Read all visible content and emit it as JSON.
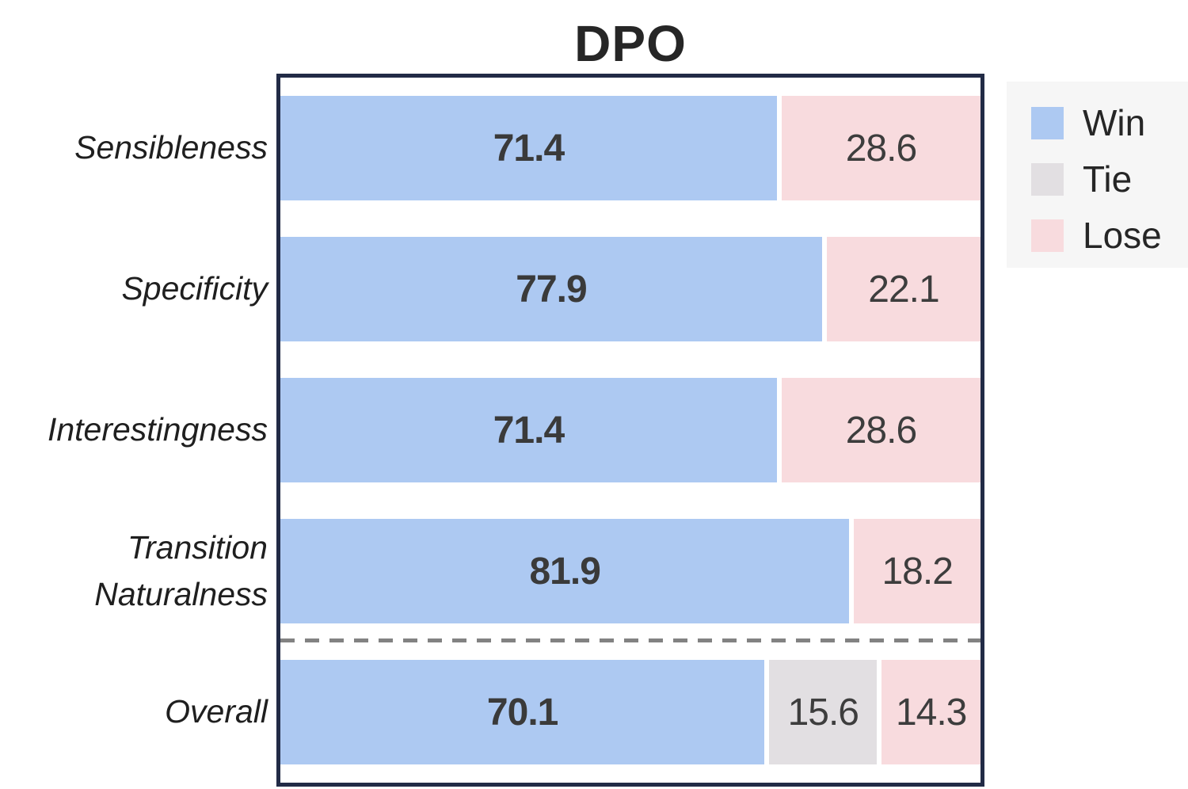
{
  "chart_data": {
    "type": "bar",
    "orientation": "horizontal-stacked",
    "title": "DPO",
    "categories": [
      "Sensibleness",
      "Specificity",
      "Interestingness",
      "Transition Naturalness",
      "Overall"
    ],
    "series": [
      {
        "name": "Win",
        "values": [
          71.4,
          77.9,
          71.4,
          81.9,
          70.1
        ]
      },
      {
        "name": "Tie",
        "values": [
          0,
          0,
          0,
          0,
          15.6
        ]
      },
      {
        "name": "Lose",
        "values": [
          28.6,
          22.1,
          28.6,
          18.2,
          14.3
        ]
      }
    ],
    "value_labels": {
      "win": [
        "71.4",
        "77.9",
        "71.4",
        "81.9",
        "70.1"
      ],
      "tie": [
        "",
        "",
        "",
        "",
        "15.6"
      ],
      "lose": [
        "28.6",
        "22.1",
        "28.6",
        "18.2",
        "14.3"
      ]
    },
    "legend": {
      "position": "outside-top-right",
      "entries": [
        {
          "label": "Win",
          "color": "#adc9f2"
        },
        {
          "label": "Tie",
          "color": "#e2dfe2"
        },
        {
          "label": "Lose",
          "color": "#f8dbde"
        }
      ]
    },
    "separator": {
      "after_category_index": 3,
      "style": "dashed",
      "color": "#828282"
    },
    "colors": {
      "win": "#adc9f2",
      "tie": "#e2dfe2",
      "lose": "#f8dbde",
      "frame_border": "#222b46",
      "value_text": "#3d3d3d",
      "label_text": "#1f1f1f"
    },
    "xlim": [
      0,
      100
    ],
    "grid": false,
    "axis_ticks": "none"
  }
}
